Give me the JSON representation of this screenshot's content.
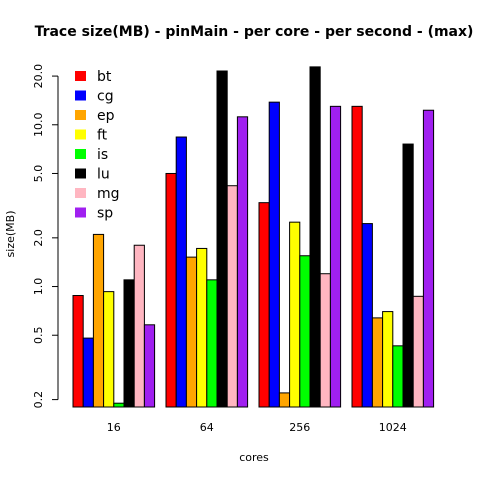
{
  "chart_data": {
    "type": "bar",
    "title": "Trace size(MB) - pinMain - per core - per second - (max)",
    "xlabel": "cores",
    "ylabel": "size(MB)",
    "y_scale": "log",
    "yticks": [
      "0.2",
      "0.5",
      "1.0",
      "2.0",
      "5.0",
      "10.0",
      "20.0"
    ],
    "ylim": [
      0.18,
      27
    ],
    "categories": [
      "16",
      "64",
      "256",
      "1024"
    ],
    "legend_position": "top-left",
    "series": [
      {
        "name": "bt",
        "color": "#ff0000",
        "values": [
          0.88,
          5.0,
          3.3,
          13.0
        ]
      },
      {
        "name": "cg",
        "color": "#0000ff",
        "values": [
          0.48,
          8.4,
          13.8,
          2.45
        ]
      },
      {
        "name": "ep",
        "color": "#ffa500",
        "values": [
          2.1,
          1.52,
          0.22,
          0.64
        ]
      },
      {
        "name": "ft",
        "color": "#ffff00",
        "values": [
          0.93,
          1.72,
          2.5,
          0.7
        ]
      },
      {
        "name": "is",
        "color": "#00ff00",
        "values": [
          0.19,
          1.1,
          1.55,
          0.43
        ]
      },
      {
        "name": "lu",
        "color": "#000000",
        "values": [
          1.1,
          21.5,
          22.8,
          7.6
        ]
      },
      {
        "name": "mg",
        "color": "#ffb6c1",
        "values": [
          1.8,
          4.2,
          1.2,
          0.87
        ]
      },
      {
        "name": "sp",
        "color": "#a020f0",
        "values": [
          0.58,
          11.2,
          13.0,
          12.3
        ]
      }
    ]
  }
}
